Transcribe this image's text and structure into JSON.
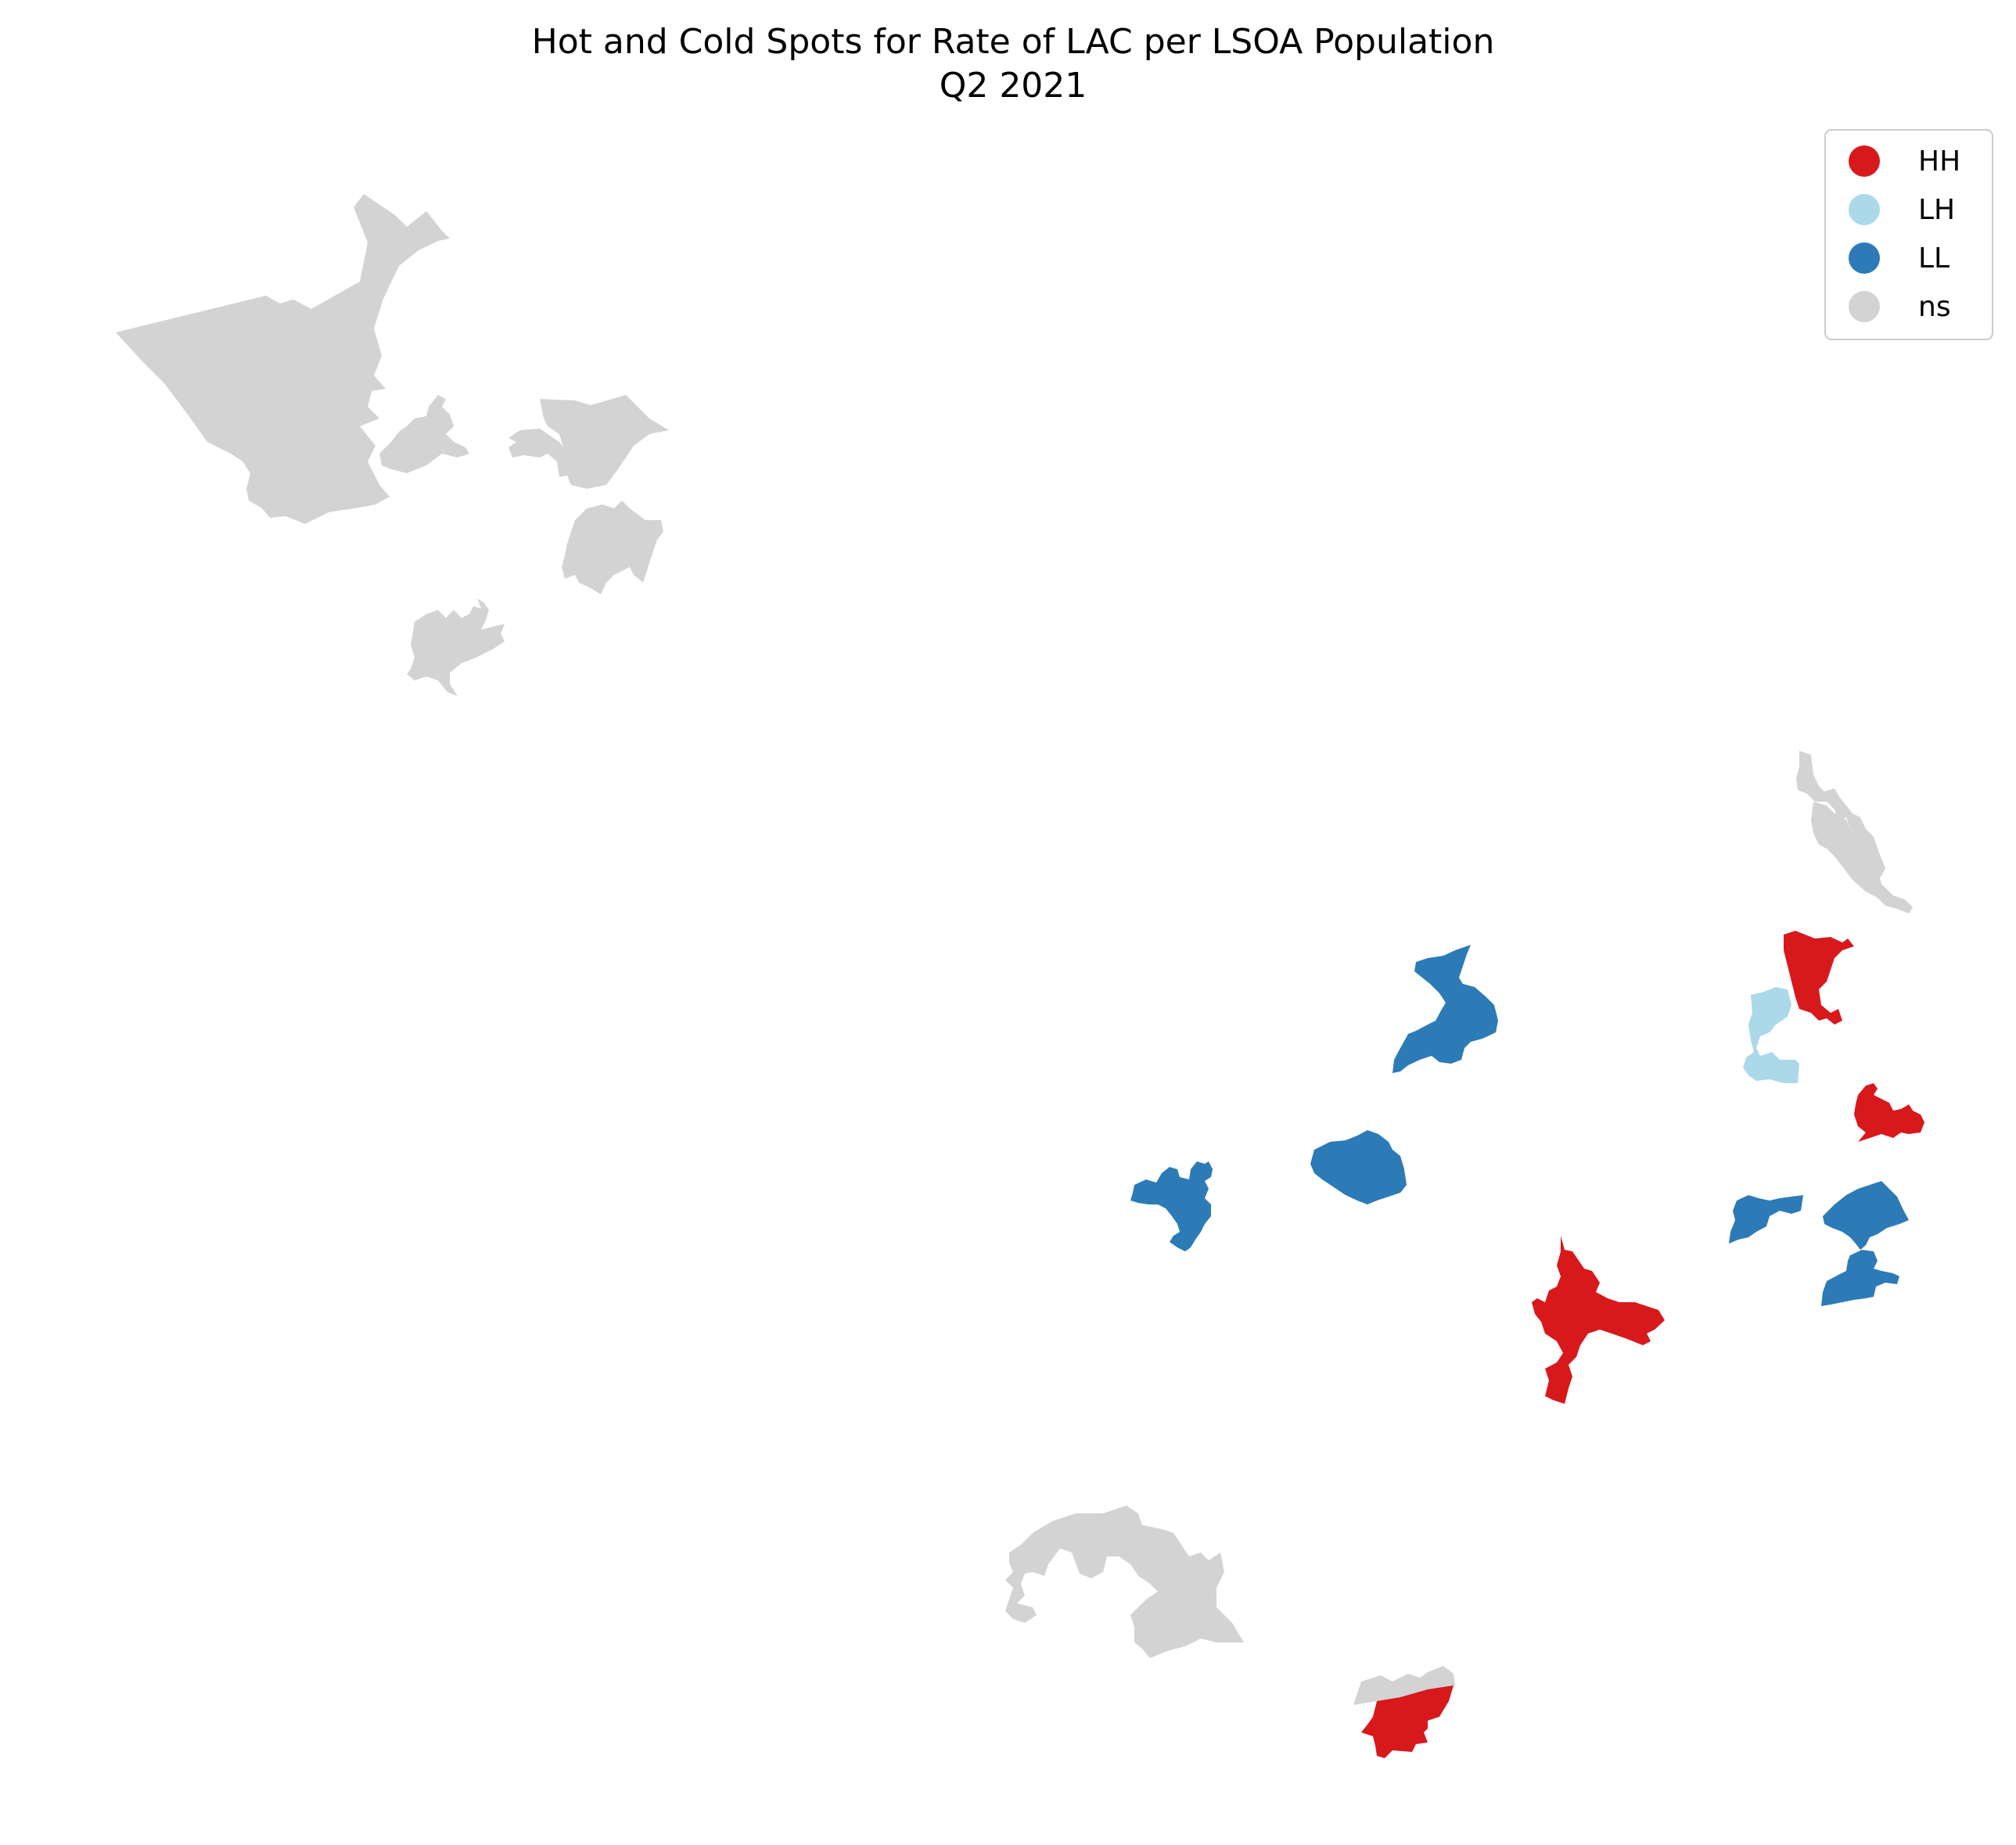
{
  "map": {
    "title_line1": "Hot and Cold Spots for Rate of LAC per LSOA Population",
    "title_line2": "Q2 2021",
    "legend": [
      {
        "label": "HH",
        "color": "#d7191c"
      },
      {
        "label": "LH",
        "color": "#abd9e9"
      },
      {
        "label": "LL",
        "color": "#2c7bb6"
      },
      {
        "label": "ns",
        "color": "#d3d3d3"
      }
    ],
    "categories": {
      "HH": "#d7191c",
      "LH": "#abd9e9",
      "LL": "#2c7bb6",
      "ns": "#d3d3d3"
    }
  }
}
